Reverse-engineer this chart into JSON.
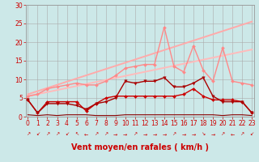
{
  "xlabel": "Vent moyen/en rafales ( km/h )",
  "xlim": [
    0,
    23
  ],
  "ylim": [
    0,
    30
  ],
  "xticks": [
    0,
    1,
    2,
    3,
    4,
    5,
    6,
    7,
    8,
    9,
    10,
    11,
    12,
    13,
    14,
    15,
    16,
    17,
    18,
    19,
    20,
    21,
    22,
    23
  ],
  "yticks": [
    0,
    5,
    10,
    15,
    20,
    25,
    30
  ],
  "bg_color": "#cce8e8",
  "grid_color": "#aaaaaa",
  "series": [
    {
      "comment": "light pink trend line 1 (lower)",
      "x": [
        0,
        23
      ],
      "y": [
        5.5,
        18.0
      ],
      "color": "#ffbbbb",
      "lw": 1.4,
      "marker": null,
      "ms": 0,
      "zorder": 2
    },
    {
      "comment": "light pink trend line 2 (upper)",
      "x": [
        0,
        23
      ],
      "y": [
        6.0,
        25.5
      ],
      "color": "#ffaaaa",
      "lw": 1.4,
      "marker": null,
      "ms": 0,
      "zorder": 2
    },
    {
      "comment": "medium pink line with diamond markers - peaks at 14 and 17",
      "x": [
        0,
        1,
        2,
        3,
        4,
        5,
        6,
        7,
        8,
        9,
        10,
        11,
        12,
        13,
        14,
        15,
        16,
        17,
        18,
        19,
        20,
        21,
        22,
        23
      ],
      "y": [
        5.5,
        6.0,
        7.5,
        8.0,
        8.5,
        9.0,
        8.5,
        8.5,
        9.5,
        11.0,
        13.0,
        13.5,
        14.0,
        14.0,
        24.0,
        13.5,
        12.0,
        19.0,
        12.5,
        9.5,
        18.5,
        9.5,
        9.0,
        8.5
      ],
      "color": "#ff8888",
      "lw": 1.0,
      "marker": "D",
      "ms": 2.0,
      "zorder": 4
    },
    {
      "comment": "dark red line - flat near 4-5, small values",
      "x": [
        0,
        1,
        2,
        3,
        4,
        5,
        6,
        7,
        8,
        9,
        10,
        11,
        12,
        13,
        14,
        15,
        16,
        17,
        18,
        19,
        20,
        21,
        22,
        23
      ],
      "y": [
        4.5,
        1.0,
        4.0,
        4.0,
        4.0,
        4.0,
        1.5,
        3.5,
        5.0,
        5.5,
        5.5,
        5.5,
        5.5,
        5.5,
        5.5,
        5.5,
        6.0,
        7.5,
        5.5,
        4.5,
        4.5,
        4.5,
        4.0,
        1.0
      ],
      "color": "#cc0000",
      "lw": 1.0,
      "marker": "D",
      "ms": 2.0,
      "zorder": 5
    },
    {
      "comment": "dark red line with down-triangle - mid values peaking ~10",
      "x": [
        0,
        1,
        2,
        3,
        4,
        5,
        6,
        7,
        8,
        9,
        10,
        11,
        12,
        13,
        14,
        15,
        16,
        17,
        18,
        19,
        20,
        21,
        22,
        23
      ],
      "y": [
        4.5,
        1.0,
        3.5,
        3.5,
        3.5,
        3.0,
        2.0,
        3.5,
        4.0,
        5.0,
        9.5,
        9.0,
        9.5,
        9.5,
        10.5,
        8.0,
        8.0,
        9.0,
        10.5,
        5.5,
        4.0,
        4.0,
        4.0,
        1.0
      ],
      "color": "#aa0000",
      "lw": 1.0,
      "marker": "v",
      "ms": 2.5,
      "zorder": 5
    },
    {
      "comment": "near-zero dark red line",
      "x": [
        0,
        1,
        2,
        3,
        4,
        5,
        6,
        7,
        8,
        9,
        10,
        11,
        12,
        13,
        14,
        15,
        16,
        17,
        18,
        19,
        20,
        21,
        22,
        23
      ],
      "y": [
        0.5,
        0.3,
        0.5,
        0.3,
        0.5,
        0.5,
        0.5,
        0.3,
        0.3,
        0.3,
        0.5,
        0.5,
        0.5,
        0.5,
        0.5,
        0.5,
        0.5,
        0.5,
        0.5,
        0.5,
        0.3,
        0.5,
        0.5,
        0.3
      ],
      "color": "#880000",
      "lw": 0.8,
      "marker": null,
      "ms": 0,
      "zorder": 3
    }
  ],
  "arrows": [
    "↗",
    "↙",
    "↗",
    "↗",
    "↙",
    "↖",
    "←",
    "↗",
    "↗",
    "→",
    "→",
    "↗",
    "→",
    "→",
    "→",
    "↗",
    "→",
    "→",
    "↘",
    "→",
    "↗",
    "←",
    "↗",
    "↙"
  ],
  "xlabel_fontsize": 7.0,
  "tick_fontsize": 5.5,
  "axis_color": "#cc0000"
}
